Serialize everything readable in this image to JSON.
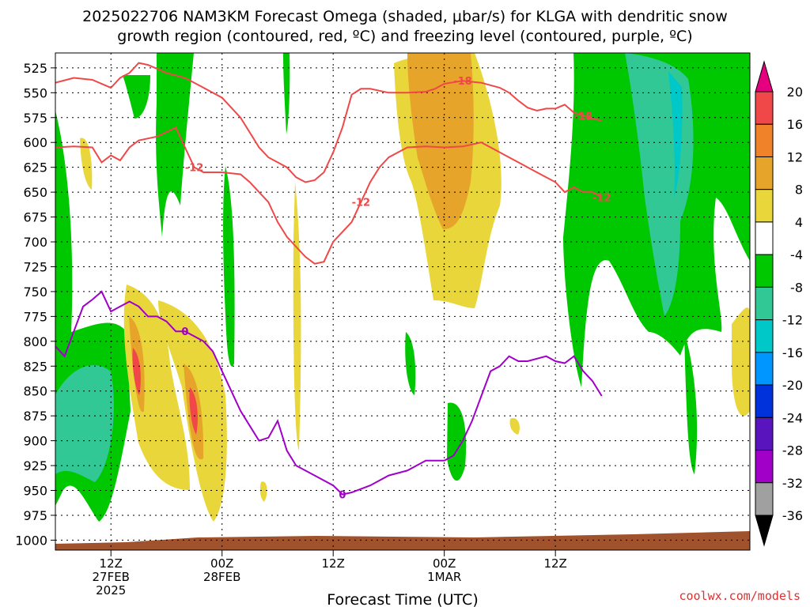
{
  "title_line1": "2025022706 NAM3KM Forecast Omega (shaded, μbar/s) for KLGA with dendritic snow",
  "title_line2": "growth region (contoured, red, ºC) and freezing level (contoured, purple, ºC)",
  "credit": "coolwx.com/models",
  "chart_data": {
    "type": "heatmap",
    "title": "2025022706 NAM3KM Forecast Omega (shaded, μbar/s) for KLGA with dendritic snow growth region (contoured, red, ºC) and freezing level (contoured, purple, ºC)",
    "xlabel": "Forecast Time (UTC)",
    "ylabel": "",
    "x_range_hours_since_2025022706": [
      0,
      75
    ],
    "x_ticks": [
      {
        "hour": 6,
        "line1": "12Z",
        "line2": "27FEB",
        "line3": "2025"
      },
      {
        "hour": 18,
        "line1": "00Z",
        "line2": "28FEB",
        "line3": ""
      },
      {
        "hour": 30,
        "line1": "12Z",
        "line2": "",
        "line3": ""
      },
      {
        "hour": 42,
        "line1": "00Z",
        "line2": "1MAR",
        "line3": ""
      },
      {
        "hour": 54,
        "line1": "12Z",
        "line2": "",
        "line3": ""
      }
    ],
    "y_ticks_hpa": [
      525,
      550,
      575,
      600,
      625,
      650,
      675,
      700,
      725,
      750,
      775,
      800,
      825,
      850,
      875,
      900,
      925,
      950,
      975,
      1000
    ],
    "ylim_hpa": [
      510,
      1010
    ],
    "grid": true,
    "colorbar": {
      "levels": [
        20,
        16,
        12,
        8,
        4,
        -4,
        -8,
        -12,
        -16,
        -20,
        -24,
        -28,
        -32,
        -36
      ],
      "colors": [
        "#e4007f",
        "#f04848",
        "#f0822a",
        "#e6a42a",
        "#e8d63a",
        "#ffffff",
        "#00c800",
        "#32c896",
        "#00c8c8",
        "#0096ff",
        "#0032dc",
        "#5a14be",
        "#a000c8",
        "#a0a0a0",
        "#000000"
      ]
    },
    "series": [
      {
        "name": "-12",
        "color": "#f04848",
        "points": [
          [
            0,
            605
          ],
          [
            2,
            604
          ],
          [
            4,
            605
          ],
          [
            5,
            620
          ],
          [
            6,
            613
          ],
          [
            7,
            618
          ],
          [
            8,
            605
          ],
          [
            9,
            598
          ],
          [
            11,
            594
          ],
          [
            13,
            585
          ],
          [
            14,
            605
          ],
          [
            15,
            625
          ],
          [
            16,
            630
          ],
          [
            18,
            630
          ],
          [
            20,
            632
          ],
          [
            21,
            640
          ],
          [
            22,
            650
          ],
          [
            23,
            660
          ],
          [
            24,
            680
          ],
          [
            25,
            695
          ],
          [
            26,
            705
          ],
          [
            27,
            715
          ],
          [
            28,
            722
          ],
          [
            29,
            720
          ],
          [
            30,
            700
          ],
          [
            31,
            690
          ],
          [
            32,
            680
          ],
          [
            33,
            660
          ],
          [
            34,
            640
          ],
          [
            35,
            625
          ],
          [
            36,
            615
          ],
          [
            38,
            605
          ],
          [
            40,
            604
          ],
          [
            42,
            605
          ],
          [
            44,
            604
          ],
          [
            46,
            600
          ],
          [
            48,
            610
          ],
          [
            50,
            620
          ],
          [
            52,
            630
          ],
          [
            54,
            640
          ],
          [
            55,
            650
          ],
          [
            56,
            645
          ],
          [
            57,
            650
          ],
          [
            58,
            650
          ],
          [
            59,
            655
          ]
        ]
      },
      {
        "name": "-18",
        "color": "#f04848",
        "points": [
          [
            0,
            540
          ],
          [
            2,
            535
          ],
          [
            4,
            537
          ],
          [
            6,
            545
          ],
          [
            7,
            535
          ],
          [
            8,
            530
          ],
          [
            9,
            520
          ],
          [
            10,
            522
          ],
          [
            12,
            530
          ],
          [
            14,
            535
          ],
          [
            16,
            545
          ],
          [
            18,
            555
          ],
          [
            19,
            565
          ],
          [
            20,
            575
          ],
          [
            21,
            590
          ],
          [
            22,
            605
          ],
          [
            23,
            615
          ],
          [
            24,
            620
          ],
          [
            25,
            625
          ],
          [
            26,
            635
          ],
          [
            27,
            640
          ],
          [
            28,
            638
          ],
          [
            29,
            630
          ],
          [
            30,
            610
          ],
          [
            31,
            585
          ],
          [
            32,
            552
          ],
          [
            33,
            546
          ],
          [
            34,
            546
          ],
          [
            35,
            548
          ],
          [
            36,
            550
          ],
          [
            38,
            550
          ],
          [
            40,
            549
          ],
          [
            41,
            546
          ],
          [
            42,
            541
          ],
          [
            44,
            538
          ],
          [
            46,
            540
          ],
          [
            48,
            545
          ],
          [
            49,
            550
          ],
          [
            50,
            558
          ],
          [
            51,
            565
          ],
          [
            52,
            568
          ],
          [
            53,
            566
          ],
          [
            54,
            566
          ],
          [
            55,
            562
          ],
          [
            56,
            570
          ],
          [
            57,
            573
          ],
          [
            58,
            576
          ],
          [
            59,
            578
          ]
        ]
      },
      {
        "name": "0",
        "color": "#a000c8",
        "points": [
          [
            0,
            805
          ],
          [
            1,
            815
          ],
          [
            2,
            790
          ],
          [
            3,
            765
          ],
          [
            4,
            758
          ],
          [
            5,
            750
          ],
          [
            6,
            770
          ],
          [
            7,
            765
          ],
          [
            8,
            760
          ],
          [
            9,
            765
          ],
          [
            10,
            775
          ],
          [
            11,
            775
          ],
          [
            12,
            780
          ],
          [
            13,
            790
          ],
          [
            14,
            790
          ],
          [
            15,
            795
          ],
          [
            16,
            800
          ],
          [
            17,
            810
          ],
          [
            18,
            830
          ],
          [
            19,
            850
          ],
          [
            20,
            870
          ],
          [
            21,
            885
          ],
          [
            22,
            900
          ],
          [
            23,
            897
          ],
          [
            24,
            880
          ],
          [
            25,
            910
          ],
          [
            26,
            925
          ],
          [
            28,
            935
          ],
          [
            30,
            945
          ],
          [
            31,
            954
          ],
          [
            32,
            952
          ],
          [
            34,
            945
          ],
          [
            36,
            935
          ],
          [
            38,
            930
          ],
          [
            40,
            920
          ],
          [
            42,
            920
          ],
          [
            43,
            915
          ],
          [
            44,
            900
          ],
          [
            45,
            880
          ],
          [
            46,
            855
          ],
          [
            47,
            830
          ],
          [
            48,
            825
          ],
          [
            49,
            815
          ],
          [
            50,
            820
          ],
          [
            51,
            820
          ],
          [
            53,
            815
          ],
          [
            54,
            820
          ],
          [
            55,
            822
          ],
          [
            56,
            815
          ],
          [
            57,
            830
          ],
          [
            58,
            840
          ],
          [
            59,
            855
          ]
        ]
      }
    ],
    "contour_labels": [
      "-12",
      "-18",
      "0"
    ]
  }
}
